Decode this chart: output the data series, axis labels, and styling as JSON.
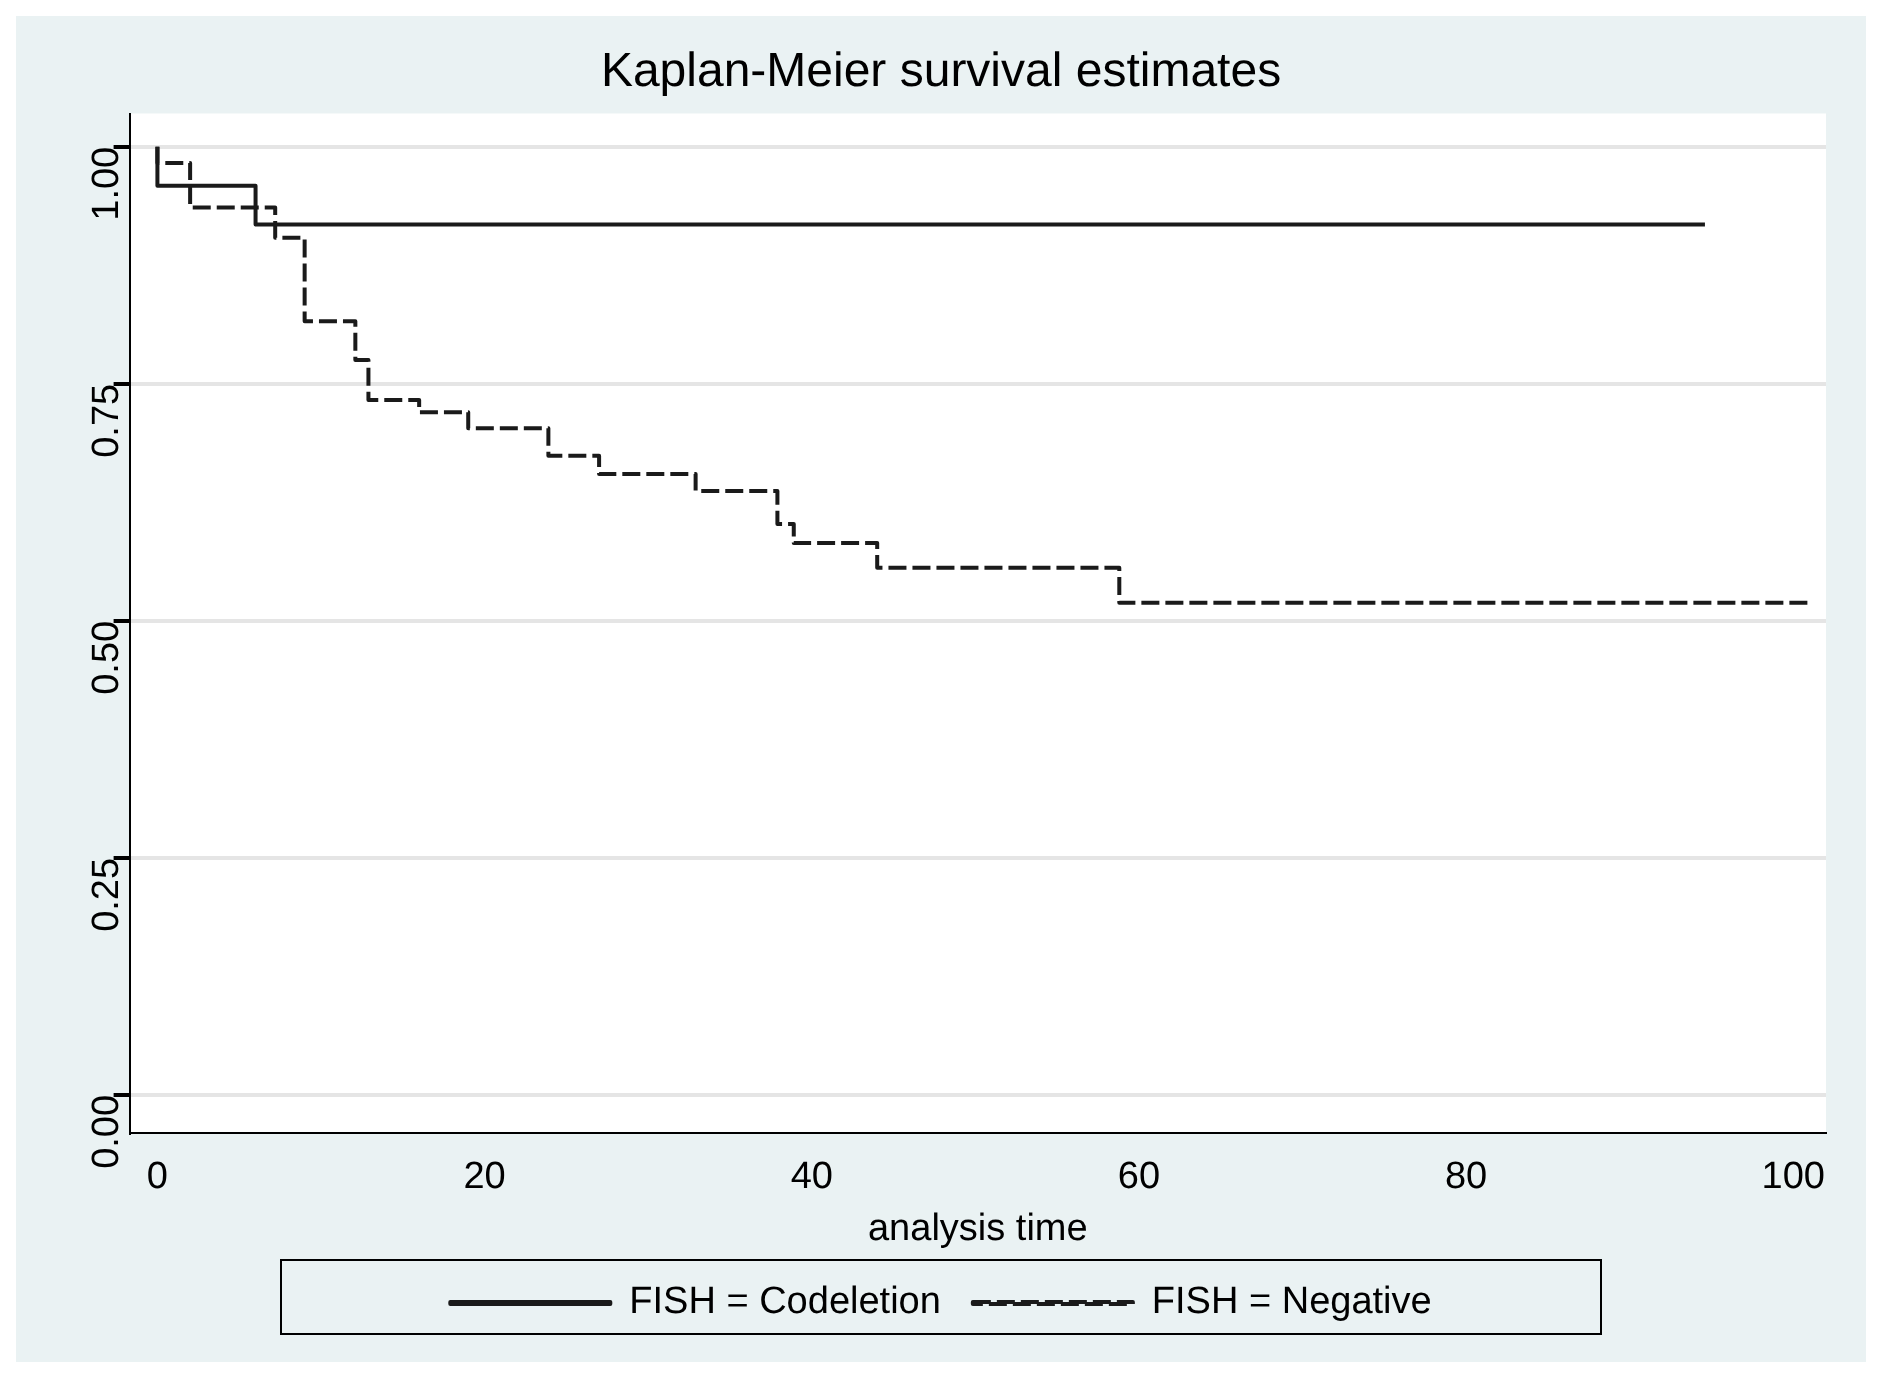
{
  "chart_data": {
    "type": "step",
    "title": "Kaplan-Meier survival estimates",
    "xlabel": "analysis time",
    "series": [
      {
        "name": "FISH = Codeletion",
        "color": "#1a1a1a",
        "line_style": "solid",
        "x": [
          0,
          6,
          11,
          94.6
        ],
        "values": [
          1,
          0.959,
          0.918,
          0.918
        ]
      },
      {
        "name": "FISH = Negative",
        "color": "#1a1a1a",
        "line_style": "dashed",
        "x": [
          0,
          2,
          7.2,
          9,
          12.1,
          12.9,
          16,
          19,
          23.9,
          27,
          32.9,
          37.9,
          38.9,
          44,
          58.8,
          66.9,
          101
        ],
        "values": [
          1,
          0.983,
          0.936,
          0.904,
          0.816,
          0.775,
          0.733,
          0.72,
          0.703,
          0.674,
          0.655,
          0.637,
          0.602,
          0.582,
          0.556,
          0.519,
          0.519
        ]
      }
    ],
    "xlim": [
      -1.7,
      102
    ],
    "xticks": [
      0,
      20,
      40,
      60,
      80,
      100
    ],
    "ylim": [
      -0.04,
      1.035
    ],
    "yticks": [
      {
        "value": 0,
        "label": "0.00"
      },
      {
        "value": 0.25,
        "label": "0.25"
      },
      {
        "value": 0.5,
        "label": "0.50"
      },
      {
        "value": 0.75,
        "label": "0.75"
      },
      {
        "value": 1,
        "label": "1.00"
      }
    ],
    "grid": "y",
    "legend": "bottom"
  }
}
